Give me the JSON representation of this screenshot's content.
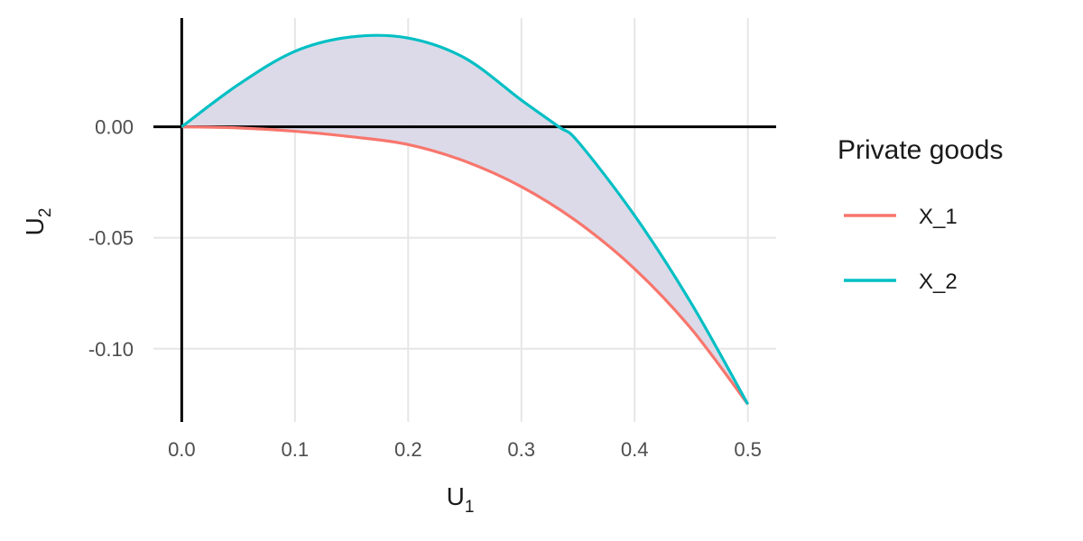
{
  "chart_data": {
    "type": "area",
    "xlabel": {
      "main": "U",
      "sub": "1"
    },
    "ylabel": {
      "main": "U",
      "sub": "2"
    },
    "xlim": [
      -0.025,
      0.525
    ],
    "ylim": [
      -0.133,
      0.049
    ],
    "x_ticks": [
      0.0,
      0.1,
      0.2,
      0.3,
      0.4,
      0.5
    ],
    "x_tick_labels": [
      "0.0",
      "0.1",
      "0.2",
      "0.3",
      "0.4",
      "0.5"
    ],
    "y_ticks": [
      0.0,
      -0.05,
      -0.1
    ],
    "y_tick_labels": [
      "0.00",
      "-0.05",
      "-0.10"
    ],
    "grid": true,
    "reference_lines": {
      "x": 0,
      "y": 0
    },
    "legend": {
      "title": "Private goods",
      "position": "right"
    },
    "series": [
      {
        "name": "X_1",
        "color": "#F8766D",
        "x": [
          0.0,
          0.05,
          0.1,
          0.15,
          0.2,
          0.25,
          0.3,
          0.35,
          0.4,
          0.45,
          0.5
        ],
        "y": [
          0.0,
          -0.0005,
          -0.002,
          -0.0045,
          -0.008,
          -0.0155,
          -0.027,
          -0.043,
          -0.064,
          -0.091,
          -0.125
        ]
      },
      {
        "name": "X_2",
        "color": "#00BFC4",
        "x": [
          0.0,
          0.05,
          0.1,
          0.15,
          0.2,
          0.25,
          0.3,
          0.333,
          0.35,
          0.4,
          0.45,
          0.5
        ],
        "y": [
          0.0,
          0.019,
          0.034,
          0.0405,
          0.04,
          0.031,
          0.012,
          0.0,
          -0.0067,
          -0.04,
          -0.0795,
          -0.125
        ]
      }
    ],
    "fill_between": {
      "color": "#DAD8E7"
    }
  }
}
